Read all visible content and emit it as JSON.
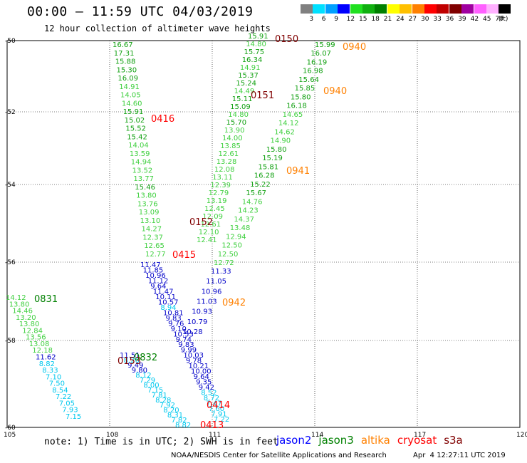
{
  "header": {
    "title": "00:00 – 11:59 UTC 04/03/2019",
    "subtitle": "12 hour collection of altimeter wave heights"
  },
  "color_scale": {
    "unit": "(ft)",
    "bins": [
      {
        "label": "3",
        "color": "#808080"
      },
      {
        "label": "6",
        "color": "#00e0ff"
      },
      {
        "label": "9",
        "color": "#00a0ff"
      },
      {
        "label": "12",
        "color": "#0000ff"
      },
      {
        "label": "15",
        "color": "#20e020"
      },
      {
        "label": "18",
        "color": "#10b010"
      },
      {
        "label": "21",
        "color": "#008000"
      },
      {
        "label": "24",
        "color": "#ffff00"
      },
      {
        "label": "27",
        "color": "#ffc000"
      },
      {
        "label": "30",
        "color": "#ff8000"
      },
      {
        "label": "33",
        "color": "#ff0000"
      },
      {
        "label": "36",
        "color": "#c00000"
      },
      {
        "label": "39",
        "color": "#800000"
      },
      {
        "label": "42",
        "color": "#a000a0"
      },
      {
        "label": "45",
        "color": "#ff60ff"
      },
      {
        "label": "70",
        "color": "#ffb0ff"
      },
      {
        "label": "",
        "color": "#000000"
      }
    ]
  },
  "map": {
    "lat_labels": [
      "-50",
      "-52",
      "-54",
      "-56",
      "-58",
      "-60"
    ],
    "lon_labels": [
      "105",
      "108",
      "111",
      "114",
      "117",
      "120"
    ]
  },
  "tracks": [
    {
      "pass": "0150",
      "points": [
        "15.91",
        "14.80",
        "15.75",
        "16.34",
        "14.91",
        "15.37",
        "15.24",
        "14.49",
        "15.11",
        "15.09",
        "14.80",
        "15.70",
        "13.90",
        "14.00",
        "13.85",
        "12.61",
        "13.28",
        "12.08",
        "13.11",
        "12.39",
        "12.79",
        "13.19",
        "12.45",
        "12.09",
        "12.61",
        "12.10",
        "12.41"
      ]
    },
    {
      "pass": "0151",
      "points": [
        "16.67",
        "17.31",
        "15.88",
        "15.30",
        "16.09",
        "14.91",
        "14.05",
        "14.60",
        "15.91",
        "15.02",
        "15.52",
        "15.42",
        "14.04",
        "13.59",
        "14.94",
        "13.52",
        "13.77",
        "15.46",
        "13.80",
        "13.76",
        "13.09",
        "13.10",
        "14.27",
        "12.37",
        "12.65",
        "12.77"
      ]
    },
    {
      "pass": "0940",
      "points": [
        "15.99",
        "16.07",
        "16.19",
        "16.98",
        "15.64",
        "15.85",
        "15.80",
        "16.18",
        "14.65",
        "14.12",
        "14.62",
        "14.90",
        "15.80",
        "15.19",
        "15.81",
        "16.28",
        "15.22",
        "15.67",
        "14.76",
        "14.23",
        "14.37",
        "13.48",
        "12.94",
        "12.50",
        "12.50",
        "12.72"
      ]
    },
    {
      "pass": "0415",
      "points": [
        "11.47",
        "11.85",
        "10.96",
        "11.12",
        "9.64",
        "11.47",
        "10.11",
        "10.57",
        "8.94",
        "10.81",
        "9.83",
        "9.76",
        "9.10",
        "10.53",
        "9.74",
        "9.83",
        "9.99",
        "10.03",
        "9.78",
        "10.21",
        "10.00",
        "9.64",
        "9.35",
        "9.42",
        "8.52",
        "8.72",
        "7.47",
        "7.60",
        "7.91",
        "7.22"
      ]
    },
    {
      "pass": "0942",
      "points": [
        "11.33",
        "11.05",
        "10.96",
        "11.03",
        "10.93",
        "10.79",
        "10.28"
      ]
    },
    {
      "pass": "0831",
      "points": [
        "14.12",
        "13.80",
        "14.46",
        "13.20",
        "13.80",
        "12.84",
        "13.56",
        "13.08",
        "12.18",
        "11.62",
        "8.82",
        "8.33",
        "7.10",
        "7.50",
        "8.54",
        "7.22",
        "7.05",
        "7.93",
        "7.15"
      ]
    },
    {
      "pass": "0413",
      "points": [
        "11.51",
        "8.26",
        "9.49",
        "9.80",
        "8.12",
        "7.29",
        "8.00",
        "7.15",
        "7.81",
        "8.28",
        "7.92",
        "8.20",
        "8.31",
        "7.82",
        "8.82"
      ]
    }
  ],
  "pass_labels": [
    {
      "text": "0150",
      "color": "#800000"
    },
    {
      "text": "0940",
      "color": "#ff8000"
    },
    {
      "text": "0940",
      "color": "#ff8000"
    },
    {
      "text": "0151",
      "color": "#800000"
    },
    {
      "text": "0416",
      "color": "#ff0000"
    },
    {
      "text": "0941",
      "color": "#ff8000"
    },
    {
      "text": "0152",
      "color": "#800000"
    },
    {
      "text": "0415",
      "color": "#ff0000"
    },
    {
      "text": "0831",
      "color": "#008000"
    },
    {
      "text": "0942",
      "color": "#ff8000"
    },
    {
      "text": "0832",
      "color": "#008000"
    },
    {
      "text": "0153",
      "color": "#800000"
    },
    {
      "text": "0414",
      "color": "#ff0000"
    },
    {
      "text": "0413",
      "color": "#ff0000"
    }
  ],
  "footer": {
    "note": "note: 1) Time is in UTC; 2) SWH is in feet",
    "satellites": [
      {
        "name": "jason2",
        "color": "#0000ff"
      },
      {
        "name": "jason3",
        "color": "#008000"
      },
      {
        "name": "altika",
        "color": "#ff8000"
      },
      {
        "name": "cryosat",
        "color": "#ff0000"
      },
      {
        "name": "s3a",
        "color": "#800000"
      }
    ],
    "credit": "NOAA/NESDIS Center for Satellite Applications and Research",
    "timestamp": "Apr  4 12:27:11 UTC 2019"
  }
}
